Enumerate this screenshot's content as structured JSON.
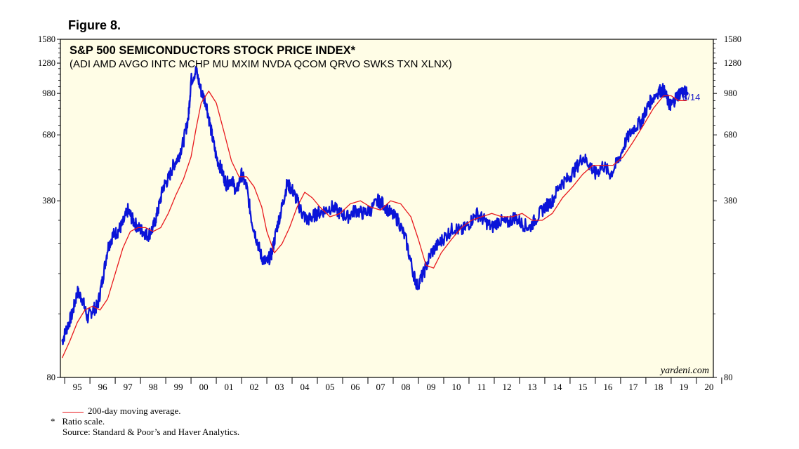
{
  "figure_label": "Figure 8.",
  "colors": {
    "background": "#fffde6",
    "index_line": "#0a14d8",
    "moving_average": "#e8191d",
    "label_blue": "#1a1ac8"
  },
  "chart_data": {
    "type": "line",
    "title": "S&P 500 SEMICONDUCTORS STOCK PRICE INDEX*",
    "subtitle": "(ADI AMD AVGO INTC MCHP MU MXIM NVDA QCOM QRVO SWKS TXN XLNX)",
    "y_scale": "log",
    "ylim": [
      80,
      1580
    ],
    "y_ticks": [
      80,
      380,
      680,
      980,
      1280,
      1580
    ],
    "x_range": [
      1994.83,
      2020.67
    ],
    "x_tick_labels": [
      "95",
      "96",
      "97",
      "98",
      "99",
      "00",
      "01",
      "02",
      "03",
      "04",
      "05",
      "06",
      "07",
      "08",
      "09",
      "10",
      "11",
      "12",
      "13",
      "14",
      "15",
      "16",
      "17",
      "18",
      "19",
      "20"
    ],
    "watermark": "yardeni.com",
    "end_label": "8/14",
    "series": [
      {
        "name": "S&P 500 Semiconductors Index",
        "x": [
          1994.9,
          1995.1,
          1995.3,
          1995.5,
          1995.7,
          1995.9,
          1996.1,
          1996.3,
          1996.5,
          1996.7,
          1996.9,
          1997.1,
          1997.3,
          1997.5,
          1997.7,
          1997.9,
          1998.1,
          1998.3,
          1998.5,
          1998.7,
          1998.9,
          1999.1,
          1999.3,
          1999.5,
          1999.7,
          1999.9,
          2000.0,
          2000.2,
          2000.4,
          2000.6,
          2000.8,
          2001.0,
          2001.2,
          2001.4,
          2001.6,
          2001.8,
          2002.0,
          2002.2,
          2002.4,
          2002.6,
          2002.8,
          2003.0,
          2003.2,
          2003.4,
          2003.6,
          2003.8,
          2004.0,
          2004.2,
          2004.4,
          2004.6,
          2004.8,
          2005.0,
          2005.3,
          2005.6,
          2005.9,
          2006.2,
          2006.5,
          2006.8,
          2007.1,
          2007.4,
          2007.6,
          2007.9,
          2008.2,
          2008.5,
          2008.8,
          2008.95,
          2009.2,
          2009.5,
          2009.8,
          2010.1,
          2010.4,
          2010.7,
          2011.0,
          2011.3,
          2011.6,
          2011.9,
          2012.2,
          2012.5,
          2012.8,
          2013.1,
          2013.4,
          2013.7,
          2014.0,
          2014.3,
          2014.6,
          2014.9,
          2015.2,
          2015.5,
          2015.8,
          2016.0,
          2016.3,
          2016.6,
          2016.9,
          2017.2,
          2017.5,
          2017.8,
          2018.0,
          2018.2,
          2018.5,
          2018.7,
          2018.9,
          2019.0,
          2019.2,
          2019.4,
          2019.62
        ],
        "values": [
          110,
          125,
          140,
          170,
          160,
          135,
          145,
          150,
          190,
          250,
          280,
          290,
          310,
          350,
          320,
          300,
          290,
          280,
          300,
          350,
          430,
          460,
          520,
          560,
          640,
          800,
          1100,
          1200,
          1000,
          900,
          700,
          560,
          500,
          440,
          460,
          410,
          480,
          430,
          320,
          270,
          230,
          220,
          240,
          300,
          360,
          440,
          420,
          380,
          340,
          320,
          330,
          340,
          350,
          360,
          340,
          330,
          350,
          340,
          350,
          380,
          370,
          340,
          320,
          270,
          200,
          180,
          200,
          240,
          260,
          280,
          300,
          290,
          310,
          340,
          320,
          300,
          320,
          310,
          330,
          310,
          300,
          330,
          360,
          380,
          440,
          460,
          500,
          560,
          520,
          480,
          520,
          480,
          540,
          640,
          720,
          760,
          840,
          920,
          1000,
          1010,
          900,
          880,
          950,
          1000,
          980
        ]
      },
      {
        "name": "200-day moving average",
        "x": [
          1994.9,
          1995.2,
          1995.5,
          1995.8,
          1996.1,
          1996.4,
          1996.7,
          1997.0,
          1997.3,
          1997.6,
          1997.9,
          1998.2,
          1998.5,
          1998.8,
          1999.1,
          1999.4,
          1999.7,
          2000.0,
          2000.2,
          2000.4,
          2000.7,
          2001.0,
          2001.3,
          2001.6,
          2001.9,
          2002.2,
          2002.5,
          2002.8,
          2003.0,
          2003.3,
          2003.6,
          2003.9,
          2004.2,
          2004.5,
          2004.8,
          2005.1,
          2005.5,
          2005.9,
          2006.3,
          2006.7,
          2007.1,
          2007.5,
          2007.9,
          2008.3,
          2008.7,
          2009.0,
          2009.3,
          2009.6,
          2009.9,
          2010.3,
          2010.7,
          2011.1,
          2011.5,
          2011.9,
          2012.3,
          2012.7,
          2013.1,
          2013.5,
          2013.9,
          2014.3,
          2014.7,
          2015.1,
          2015.5,
          2015.9,
          2016.3,
          2016.7,
          2017.1,
          2017.5,
          2017.9,
          2018.3,
          2018.7,
          2019.0,
          2019.3,
          2019.62
        ],
        "values": [
          95,
          110,
          130,
          145,
          150,
          145,
          160,
          200,
          250,
          290,
          300,
          300,
          290,
          300,
          340,
          400,
          460,
          560,
          720,
          900,
          1000,
          900,
          700,
          540,
          470,
          470,
          430,
          360,
          290,
          240,
          260,
          300,
          360,
          410,
          390,
          360,
          330,
          340,
          370,
          380,
          360,
          350,
          380,
          370,
          330,
          270,
          215,
          210,
          240,
          270,
          300,
          320,
          330,
          340,
          330,
          330,
          340,
          320,
          320,
          340,
          390,
          430,
          480,
          520,
          520,
          520,
          560,
          640,
          740,
          860,
          960,
          960,
          920,
          920
        ]
      }
    ]
  },
  "footer": {
    "legend_label": "200-day moving average.",
    "note_marker": "*",
    "note": "Ratio scale.",
    "source": "Source: Standard & Poor’s and Haver Analytics."
  }
}
